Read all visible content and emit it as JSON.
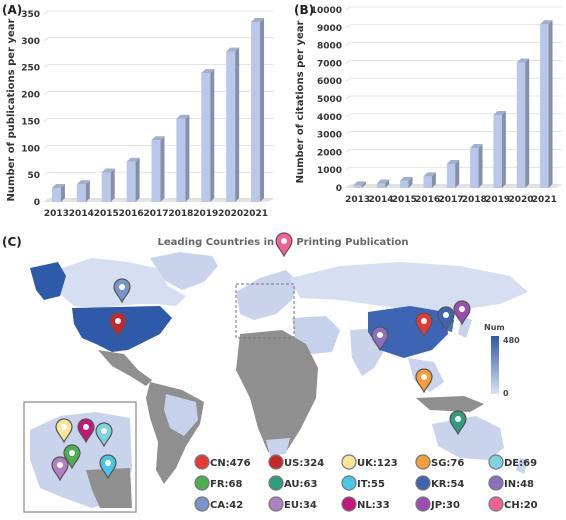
{
  "chart_data": [
    {
      "panel": "(A)",
      "type": "bar",
      "ylabel": "Number of publications per year",
      "ylim": [
        0,
        350
      ],
      "yticks": [
        0,
        50,
        100,
        150,
        200,
        250,
        300,
        350
      ],
      "categories": [
        "2013",
        "2014",
        "2015",
        "2016",
        "2017",
        "2018",
        "2019",
        "2020",
        "2021"
      ],
      "values": [
        26,
        33,
        55,
        75,
        115,
        155,
        240,
        280,
        335
      ],
      "bar_color": "#b8c7ea"
    },
    {
      "panel": "(B)",
      "type": "bar",
      "ylabel": "Number of citations per year",
      "ylim": [
        0,
        10000
      ],
      "yticks": [
        0,
        1000,
        2000,
        3000,
        4000,
        5000,
        6000,
        7000,
        8000,
        9000,
        10000
      ],
      "categories": [
        "2013",
        "2014",
        "2015",
        "2016",
        "2017",
        "2018",
        "2019",
        "2020",
        "2021"
      ],
      "values": [
        150,
        250,
        400,
        650,
        1350,
        2250,
        4100,
        7050,
        9200
      ],
      "bar_color": "#b8c7ea"
    }
  ],
  "map": {
    "panel": "(C)",
    "title": "Leading Countries in 4D Printing Publication",
    "scale": {
      "label": "Num",
      "max": "480",
      "min": "0",
      "color_low": "#dbe3f3",
      "color_high": "#2e56a8"
    },
    "legend": [
      {
        "code": "CN",
        "value": 476,
        "label": "CN:476",
        "color": "#e53935"
      },
      {
        "code": "US",
        "value": 324,
        "label": "US:324",
        "color": "#c62828"
      },
      {
        "code": "UK",
        "value": 123,
        "label": "UK:123",
        "color": "#fbe59a"
      },
      {
        "code": "SG",
        "value": 76,
        "label": "SG:76",
        "color": "#f59c3b"
      },
      {
        "code": "DE",
        "value": 69,
        "label": "DE:69",
        "color": "#7fd3e0"
      },
      {
        "code": "FR",
        "value": 68,
        "label": "FR:68",
        "color": "#4caf50"
      },
      {
        "code": "AU",
        "value": 63,
        "label": "AU:63",
        "color": "#2e9e7d"
      },
      {
        "code": "IT",
        "value": 55,
        "label": "IT:55",
        "color": "#47c6e8"
      },
      {
        "code": "KR",
        "value": 54,
        "label": "KR:54",
        "color": "#3f64b0"
      },
      {
        "code": "IN",
        "value": 48,
        "label": "IN:48",
        "color": "#8d6fc2"
      },
      {
        "code": "CA",
        "value": 42,
        "label": "CA:42",
        "color": "#7a93c9"
      },
      {
        "code": "EU",
        "value": 34,
        "label": "EU:34",
        "color": "#b07fc2"
      },
      {
        "code": "NL",
        "value": 33,
        "label": "NL:33",
        "color": "#c2187a"
      },
      {
        "code": "JP",
        "value": 30,
        "label": "JP:30",
        "color": "#9a4fb0"
      },
      {
        "code": "CH",
        "value": 20,
        "label": "CH:20",
        "color": "#f06292"
      }
    ]
  }
}
